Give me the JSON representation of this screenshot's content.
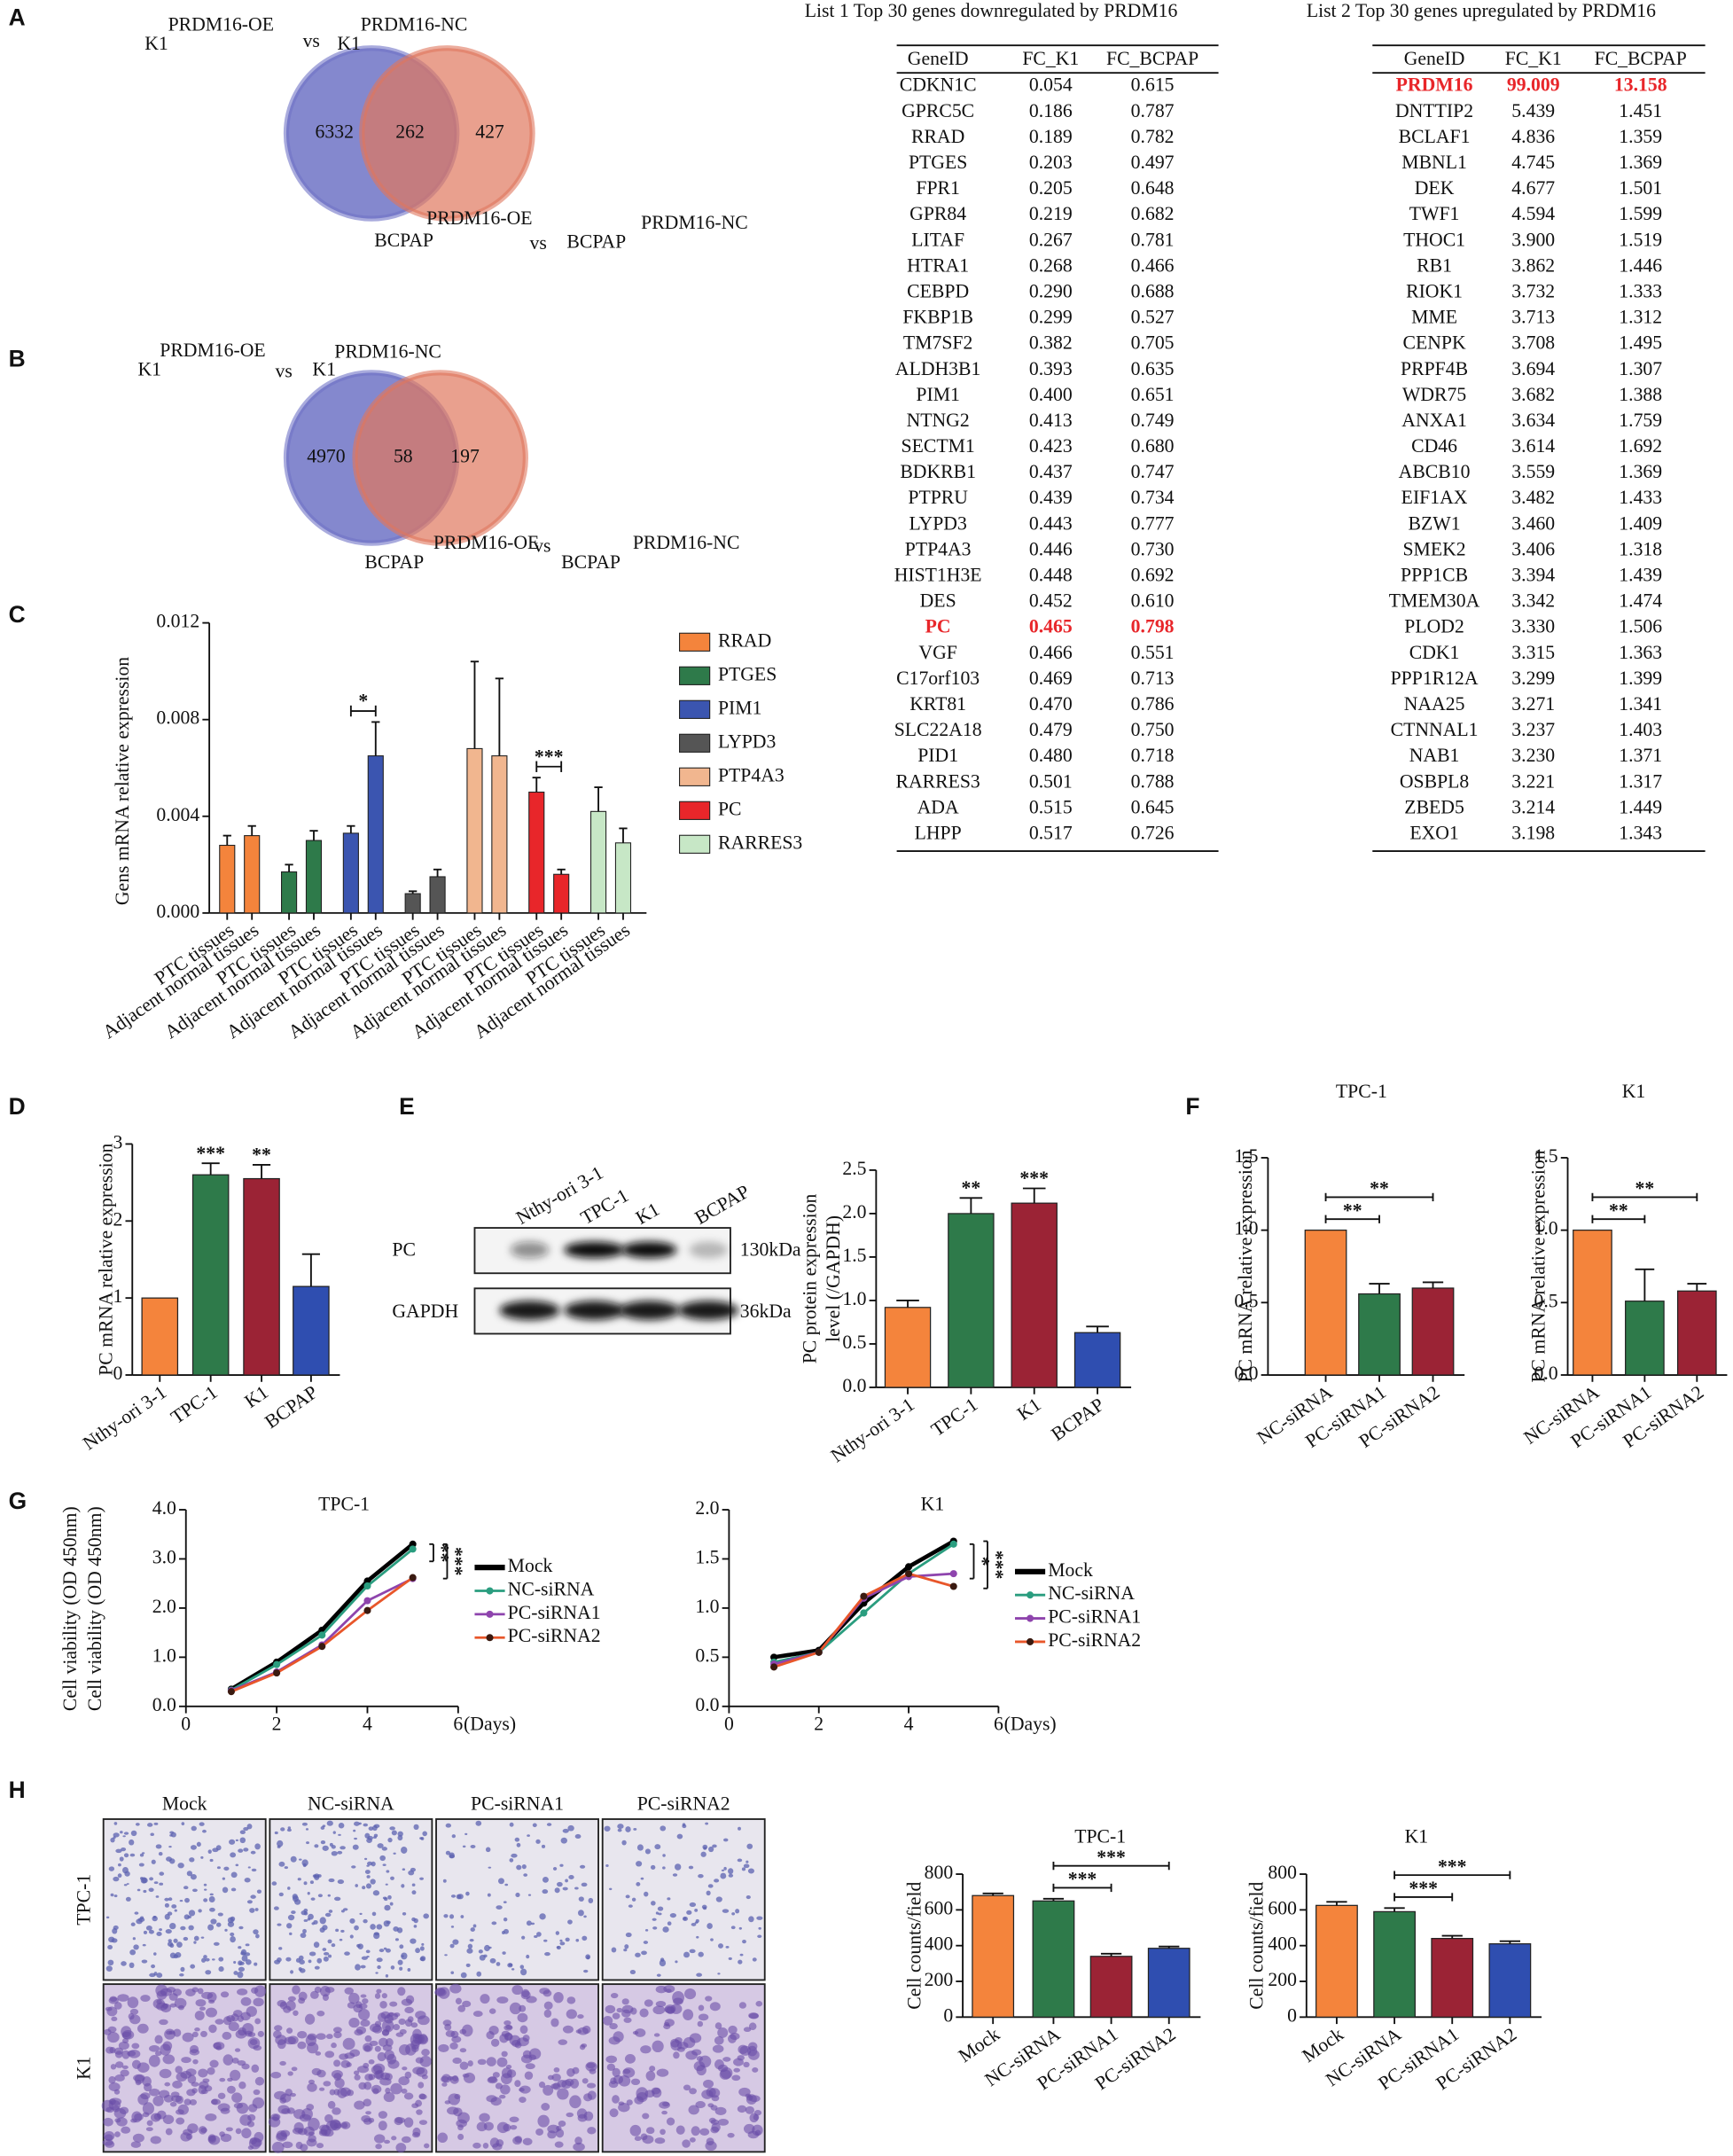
{
  "panel_labels": [
    "A",
    "B",
    "C",
    "D",
    "E",
    "F",
    "G",
    "H"
  ],
  "venn_diagrams": [
    {
      "top": {
        "left": "K1",
        "left_sup": "PRDM16-OE",
        "vs": "vs",
        "right": "K1",
        "right_sup": "PRDM16-NC"
      },
      "bottom": {
        "left": "BCPAP",
        "left_sup": "PRDM16-OE",
        "vs": "vs",
        "right": "BCPAP",
        "right_sup": "PRDM16-NC"
      },
      "values": [
        6332,
        262,
        427
      ],
      "colors": [
        "#6f73c6",
        "#e0775e"
      ]
    },
    {
      "top": {
        "left": "K1",
        "left_sup": "PRDM16-OE",
        "vs": "vs",
        "right": "K1",
        "right_sup": "PRDM16-NC"
      },
      "bottom": {
        "left": "BCPAP",
        "left_sup": "PRDM16-OE",
        "vs": "vs",
        "right": "BCPAP",
        "right_sup": "PRDM16-NC"
      },
      "values": [
        4970,
        58,
        197
      ],
      "colors": [
        "#6f73c6",
        "#e0775e"
      ]
    }
  ],
  "tables": [
    {
      "title": "List 1 Top 30 genes downregulated by PRDM16",
      "columns": [
        "GeneID",
        "FC_K1",
        "FC_BCPAP"
      ],
      "highlight_row": 21,
      "highlight_color": "#e8262a",
      "rows": [
        [
          "CDKN1C",
          "0.054",
          "0.615"
        ],
        [
          "GPRC5C",
          "0.186",
          "0.787"
        ],
        [
          "RRAD",
          "0.189",
          "0.782"
        ],
        [
          "PTGES",
          "0.203",
          "0.497"
        ],
        [
          "FPR1",
          "0.205",
          "0.648"
        ],
        [
          "GPR84",
          "0.219",
          "0.682"
        ],
        [
          "LITAF",
          "0.267",
          "0.781"
        ],
        [
          "HTRA1",
          "0.268",
          "0.466"
        ],
        [
          "CEBPD",
          "0.290",
          "0.688"
        ],
        [
          "FKBP1B",
          "0.299",
          "0.527"
        ],
        [
          "TM7SF2",
          "0.382",
          "0.705"
        ],
        [
          "ALDH3B1",
          "0.393",
          "0.635"
        ],
        [
          "PIM1",
          "0.400",
          "0.651"
        ],
        [
          "NTNG2",
          "0.413",
          "0.749"
        ],
        [
          "SECTM1",
          "0.423",
          "0.680"
        ],
        [
          "BDKRB1",
          "0.437",
          "0.747"
        ],
        [
          "PTPRU",
          "0.439",
          "0.734"
        ],
        [
          "LYPD3",
          "0.443",
          "0.777"
        ],
        [
          "PTP4A3",
          "0.446",
          "0.730"
        ],
        [
          "HIST1H3E",
          "0.448",
          "0.692"
        ],
        [
          "DES",
          "0.452",
          "0.610"
        ],
        [
          "PC",
          "0.465",
          "0.798"
        ],
        [
          "VGF",
          "0.466",
          "0.551"
        ],
        [
          "C17orf103",
          "0.469",
          "0.713"
        ],
        [
          "KRT81",
          "0.470",
          "0.786"
        ],
        [
          "SLC22A18",
          "0.479",
          "0.750"
        ],
        [
          "PID1",
          "0.480",
          "0.718"
        ],
        [
          "RARRES3",
          "0.501",
          "0.788"
        ],
        [
          "ADA",
          "0.515",
          "0.645"
        ],
        [
          "LHPP",
          "0.517",
          "0.726"
        ]
      ]
    },
    {
      "title": "List 2 Top 30 genes upregulated by PRDM16",
      "columns": [
        "GeneID",
        "FC_K1",
        "FC_BCPAP"
      ],
      "highlight_row": 0,
      "highlight_color": "#e8262a",
      "rows": [
        [
          "PRDM16",
          "99.009",
          "13.158"
        ],
        [
          "DNTTIP2",
          "5.439",
          "1.451"
        ],
        [
          "BCLAF1",
          "4.836",
          "1.359"
        ],
        [
          "MBNL1",
          "4.745",
          "1.369"
        ],
        [
          "DEK",
          "4.677",
          "1.501"
        ],
        [
          "TWF1",
          "4.594",
          "1.599"
        ],
        [
          "THOC1",
          "3.900",
          "1.519"
        ],
        [
          "RB1",
          "3.862",
          "1.446"
        ],
        [
          "RIOK1",
          "3.732",
          "1.333"
        ],
        [
          "MME",
          "3.713",
          "1.312"
        ],
        [
          "CENPK",
          "3.708",
          "1.495"
        ],
        [
          "PRPF4B",
          "3.694",
          "1.307"
        ],
        [
          "WDR75",
          "3.682",
          "1.388"
        ],
        [
          "ANXA1",
          "3.634",
          "1.759"
        ],
        [
          "CD46",
          "3.614",
          "1.692"
        ],
        [
          "ABCB10",
          "3.559",
          "1.369"
        ],
        [
          "EIF1AX",
          "3.482",
          "1.433"
        ],
        [
          "BZW1",
          "3.460",
          "1.409"
        ],
        [
          "SMEK2",
          "3.406",
          "1.318"
        ],
        [
          "PPP1CB",
          "3.394",
          "1.439"
        ],
        [
          "TMEM30A",
          "3.342",
          "1.474"
        ],
        [
          "PLOD2",
          "3.330",
          "1.506"
        ],
        [
          "CDK1",
          "3.315",
          "1.363"
        ],
        [
          "PPP1R12A",
          "3.299",
          "1.399"
        ],
        [
          "NAA25",
          "3.271",
          "1.341"
        ],
        [
          "CTNNAL1",
          "3.237",
          "1.403"
        ],
        [
          "NAB1",
          "3.230",
          "1.371"
        ],
        [
          "OSBPL8",
          "3.221",
          "1.317"
        ],
        [
          "ZBED5",
          "3.214",
          "1.449"
        ],
        [
          "EXO1",
          "3.198",
          "1.343"
        ]
      ]
    }
  ],
  "blot": {
    "lanes": [
      "Nthy-ori 3-1",
      "TPC-1",
      "K1",
      "BCPAP"
    ],
    "rows": [
      "PC",
      "GAPDH"
    ],
    "sizes": [
      "130kDa",
      "36kDa"
    ]
  },
  "images": {
    "columns": [
      "Mock",
      "NC-siRNA",
      "PC-siRNA1",
      "PC-siRNA2"
    ],
    "rows": [
      "TPC-1",
      "K1"
    ]
  },
  "chart_data": [
    {
      "type": "grouped_bar",
      "ylabel": "Gens mRNA relative expression",
      "categories": [
        "PTC tissues",
        "Adjacent normal tissues"
      ],
      "ylim": [
        0,
        0.012
      ],
      "yticks": [
        {
          "value": 0,
          "label": "0.000"
        },
        {
          "value": 0.004,
          "label": "0.004"
        },
        {
          "value": 0.008,
          "label": "0.008"
        },
        {
          "value": 0.012,
          "label": "0.012"
        }
      ],
      "series": [
        {
          "name": "RRAD",
          "color": "#f4843c",
          "values": [
            0.0028,
            0.0032
          ],
          "errors": [
            0.0004,
            0.0004
          ]
        },
        {
          "name": "PTGES",
          "color": "#2e7a4a",
          "values": [
            0.0017,
            0.003
          ],
          "errors": [
            0.0003,
            0.0004
          ]
        },
        {
          "name": "PIM1",
          "color": "#3b55b0",
          "values": [
            0.0033,
            0.0065
          ],
          "errors": [
            0.0003,
            0.0014
          ]
        },
        {
          "name": "LYPD3",
          "color": "#555555",
          "values": [
            0.0008,
            0.0015
          ],
          "errors": [
            0.0001,
            0.0003
          ]
        },
        {
          "name": "PTP4A3",
          "color": "#f1b68f",
          "values": [
            0.0068,
            0.0065
          ],
          "errors": [
            0.0036,
            0.0032
          ]
        },
        {
          "name": "PC",
          "color": "#e8262a",
          "values": [
            0.005,
            0.0016
          ],
          "errors": [
            0.0006,
            0.0002
          ]
        },
        {
          "name": "RARRES3",
          "color": "#c7e7c6",
          "values": [
            0.0042,
            0.0029
          ],
          "errors": [
            0.001,
            0.0006
          ]
        }
      ],
      "annotations": [
        {
          "series": 2,
          "label": "*"
        },
        {
          "series": 5,
          "label": "***"
        }
      ]
    },
    {
      "type": "bar",
      "ylabel": "PC mRNA relative expression",
      "categories": [
        "Nthy-ori 3-1",
        "TPC-1",
        "K1",
        "BCPAP"
      ],
      "values": [
        1,
        2.6,
        2.55,
        1.15
      ],
      "errors": [
        0,
        0.15,
        0.18,
        0.42
      ],
      "colors": [
        "#f4843c",
        "#2e7a4a",
        "#9b2335",
        "#2f4eb0"
      ],
      "significance": [
        null,
        "***",
        "**",
        null
      ],
      "ylim": [
        0,
        3
      ],
      "yticks": [
        0,
        1,
        2,
        3
      ]
    },
    {
      "type": "bar",
      "ylabel": [
        "PC protein expression",
        "level (/GAPDH)"
      ],
      "categories": [
        "Nthy-ori 3-1",
        "TPC-1",
        "K1",
        "BCPAP"
      ],
      "values": [
        0.92,
        2.0,
        2.12,
        0.63
      ],
      "errors": [
        0.08,
        0.18,
        0.17,
        0.07
      ],
      "colors": [
        "#f4843c",
        "#2e7a4a",
        "#9b2335",
        "#2f4eb0"
      ],
      "significance": [
        null,
        "**",
        "***",
        null
      ],
      "ylim": [
        0,
        2.5
      ],
      "yticks": [
        {
          "value": 0,
          "label": "0.0"
        },
        0.5,
        {
          "value": 1,
          "label": "1.0"
        },
        1.5,
        {
          "value": 2,
          "label": "2.0"
        },
        2.5
      ]
    },
    {
      "type": "bar",
      "title": "TPC-1",
      "ylabel": "PC mRNA relative expression",
      "categories": [
        "NC-siRNA",
        "PC-siRNA1",
        "PC-siRNA2"
      ],
      "values": [
        1.0,
        0.56,
        0.6
      ],
      "errors": [
        0,
        0.07,
        0.04
      ],
      "colors": [
        "#f4843c",
        "#2e7a4a",
        "#9b2335"
      ],
      "comparisons": [
        {
          "pair": [
            0,
            1
          ],
          "label": "**"
        },
        {
          "pair": [
            0,
            2
          ],
          "label": "**"
        }
      ],
      "ylim": [
        0,
        1.5
      ],
      "yticks": [
        {
          "value": 0,
          "label": "0.0"
        },
        0.5,
        {
          "value": 1,
          "label": "1.0"
        },
        1.5
      ]
    },
    {
      "type": "bar",
      "title": "K1",
      "ylabel": "PC mRNA relative expression",
      "categories": [
        "NC-siRNA",
        "PC-siRNA1",
        "PC-siRNA2"
      ],
      "values": [
        1.0,
        0.51,
        0.58
      ],
      "errors": [
        0,
        0.22,
        0.05
      ],
      "colors": [
        "#f4843c",
        "#2e7a4a",
        "#9b2335"
      ],
      "comparisons": [
        {
          "pair": [
            0,
            1
          ],
          "label": "**"
        },
        {
          "pair": [
            0,
            2
          ],
          "label": "**"
        }
      ],
      "ylim": [
        0,
        1.5
      ],
      "yticks": [
        {
          "value": 0,
          "label": "0.0"
        },
        0.5,
        {
          "value": 1,
          "label": "1.0"
        },
        1.5
      ]
    },
    {
      "type": "line",
      "title": "TPC-1",
      "ylabel": "Cell viability (OD 450nm)",
      "xlabel": "(Days)",
      "x": [
        1,
        2,
        3,
        4,
        5
      ],
      "xlim": [
        0,
        6
      ],
      "xticks": [
        0,
        2,
        4,
        6
      ],
      "ylim": [
        0,
        4
      ],
      "yticks": [
        {
          "value": 0,
          "label": "0.0"
        },
        {
          "value": 1,
          "label": "1.0"
        },
        {
          "value": 2,
          "label": "2.0"
        },
        {
          "value": 3,
          "label": "3.0"
        },
        {
          "value": 4,
          "label": "4.0"
        }
      ],
      "series": [
        {
          "name": "Mock",
          "color": "#000000",
          "values": [
            0.35,
            0.9,
            1.55,
            2.55,
            3.3
          ]
        },
        {
          "name": "NC-siRNA",
          "color": "#2a9d7f",
          "values": [
            0.33,
            0.85,
            1.45,
            2.45,
            3.2
          ]
        },
        {
          "name": "PC-siRNA1",
          "color": "#8e44ad",
          "values": [
            0.32,
            0.7,
            1.25,
            2.15,
            2.6
          ]
        },
        {
          "name": "PC-siRNA2",
          "color": "#e8562a",
          "values": [
            0.3,
            0.68,
            1.22,
            1.95,
            2.62
          ]
        }
      ],
      "annotations": [
        "**",
        "***"
      ]
    },
    {
      "type": "line",
      "title": "K1",
      "xlabel": "(Days)",
      "x": [
        1,
        2,
        3,
        4,
        5
      ],
      "xlim": [
        0,
        6
      ],
      "xticks": [
        0,
        2,
        4,
        6
      ],
      "ylim": [
        0,
        2
      ],
      "yticks": [
        {
          "value": 0,
          "label": "0.0"
        },
        0.5,
        {
          "value": 1,
          "label": "1.0"
        },
        1.5,
        {
          "value": 2,
          "label": "2.0"
        }
      ],
      "series": [
        {
          "name": "Mock",
          "color": "#000000",
          "values": [
            0.5,
            0.57,
            1.05,
            1.42,
            1.68
          ]
        },
        {
          "name": "NC-siRNA",
          "color": "#2a9d7f",
          "values": [
            0.45,
            0.55,
            0.95,
            1.35,
            1.65
          ]
        },
        {
          "name": "PC-siRNA1",
          "color": "#8e44ad",
          "values": [
            0.43,
            0.55,
            1.1,
            1.32,
            1.35
          ]
        },
        {
          "name": "PC-siRNA2",
          "color": "#e8562a",
          "values": [
            0.4,
            0.55,
            1.12,
            1.35,
            1.22
          ]
        }
      ],
      "annotations": [
        "*",
        "***"
      ]
    },
    {
      "type": "bar",
      "title": "TPC-1",
      "ylabel": "Cell counts/field",
      "categories": [
        "Mock",
        "NC-siRNA",
        "PC-siRNA1",
        "PC-siRNA2"
      ],
      "values": [
        680,
        650,
        340,
        385
      ],
      "errors": [
        12,
        12,
        15,
        10
      ],
      "colors": [
        "#f4843c",
        "#2e7a4a",
        "#9b2335",
        "#2f4eb0"
      ],
      "comparisons": [
        {
          "pair": [
            1,
            2
          ],
          "label": "***"
        },
        {
          "pair": [
            1,
            3
          ],
          "label": "***"
        }
      ],
      "ylim": [
        0,
        800
      ],
      "yticks": [
        0,
        200,
        400,
        600,
        800
      ]
    },
    {
      "type": "bar",
      "title": "K1",
      "ylabel": "Cell counts/field",
      "categories": [
        "Mock",
        "NC-siRNA",
        "PC-siRNA1",
        "PC-siRNA2"
      ],
      "values": [
        625,
        590,
        440,
        410
      ],
      "errors": [
        20,
        20,
        15,
        15
      ],
      "colors": [
        "#f4843c",
        "#2e7a4a",
        "#9b2335",
        "#2f4eb0"
      ],
      "comparisons": [
        {
          "pair": [
            1,
            2
          ],
          "label": "***"
        },
        {
          "pair": [
            1,
            3
          ],
          "label": "***"
        }
      ],
      "ylim": [
        0,
        800
      ],
      "yticks": [
        0,
        200,
        400,
        600,
        800
      ]
    }
  ]
}
